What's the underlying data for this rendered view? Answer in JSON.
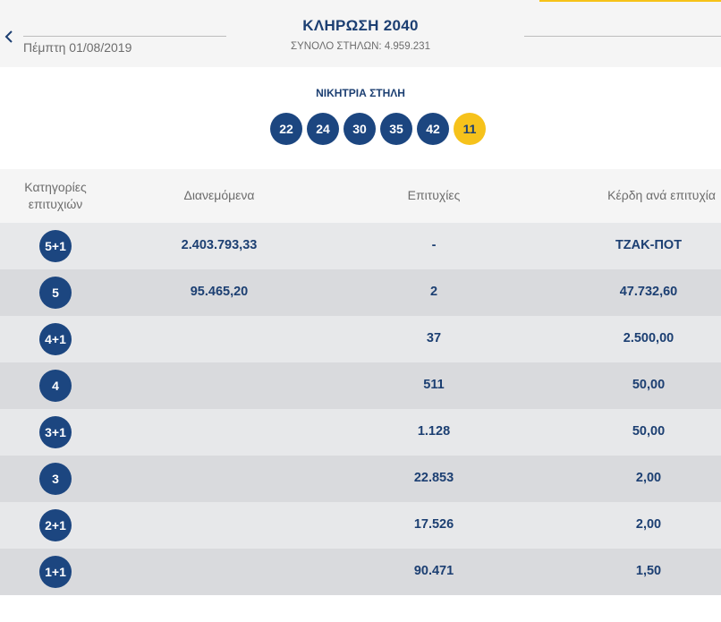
{
  "header": {
    "back_icon": "chevron-left-icon",
    "date": "Πέμπτη 01/08/2019",
    "title": "ΚΛΗΡΩΣΗ 2040",
    "subtitle": "ΣΥΝΟΛΟ ΣΤΗΛΩΝ: 4.959.231",
    "accent_color": "#f6c218"
  },
  "winning": {
    "title": "ΝΙΚΗΤΡΙΑ ΣΤΗΛΗ",
    "numbers": [
      "22",
      "24",
      "30",
      "35",
      "42"
    ],
    "bonus": "11",
    "ball_color": "#1c4680",
    "bonus_color": "#f6c21b"
  },
  "table": {
    "headers": {
      "category_line1": "Κατηγορίες",
      "category_line2": "επιτυχιών",
      "distributed": "Διανεμόμενα",
      "winners": "Επιτυχίες",
      "prize": "Κέρδη ανά επιτυχία"
    },
    "rows": [
      {
        "category": "5+1",
        "distributed": "2.403.793,33",
        "winners": "-",
        "prize": "ΤΖΑΚ-ΠΟΤ"
      },
      {
        "category": "5",
        "distributed": "95.465,20",
        "winners": "2",
        "prize": "47.732,60"
      },
      {
        "category": "4+1",
        "distributed": "",
        "winners": "37",
        "prize": "2.500,00"
      },
      {
        "category": "4",
        "distributed": "",
        "winners": "511",
        "prize": "50,00"
      },
      {
        "category": "3+1",
        "distributed": "",
        "winners": "1.128",
        "prize": "50,00"
      },
      {
        "category": "3",
        "distributed": "",
        "winners": "22.853",
        "prize": "2,00"
      },
      {
        "category": "2+1",
        "distributed": "",
        "winners": "17.526",
        "prize": "2,00"
      },
      {
        "category": "1+1",
        "distributed": "",
        "winners": "90.471",
        "prize": "1,50"
      }
    ]
  }
}
